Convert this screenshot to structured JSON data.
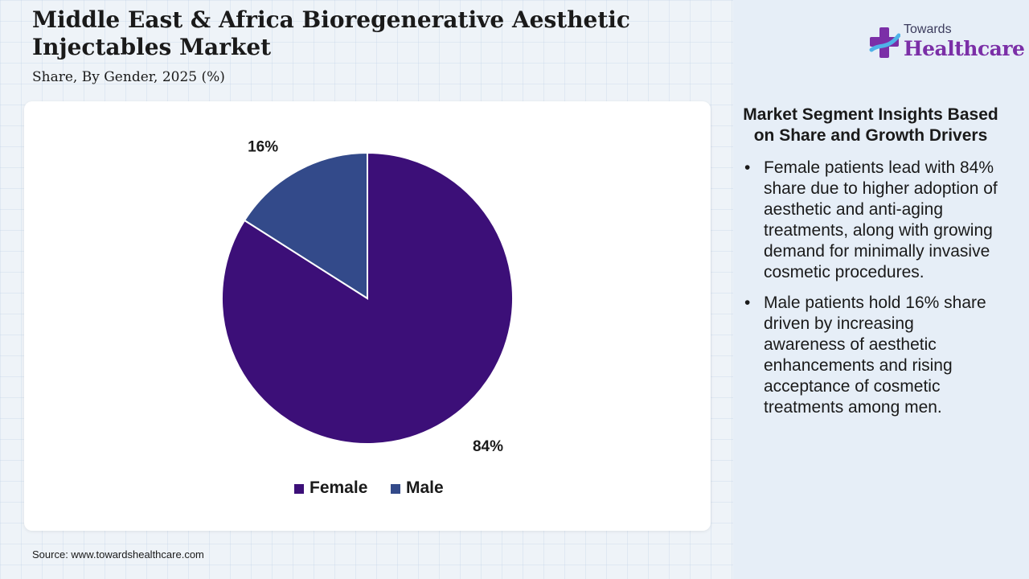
{
  "title": "Middle East & Africa Bioregenerative Aesthetic Injectables Market",
  "subtitle": "Share, By Gender, 2025 (%)",
  "logo": {
    "top": "Towards",
    "main": "Healthcare"
  },
  "source": "Source: www.towardshealthcare.com",
  "chart_data": {
    "type": "pie",
    "title": "Middle East & Africa Bioregenerative Aesthetic Injectables Market",
    "subtitle": "Share, By Gender, 2025 (%)",
    "categories": [
      "Female",
      "Male"
    ],
    "values": [
      84,
      16
    ],
    "labels": [
      "84%",
      "16%"
    ],
    "colors": [
      "#3c0f78",
      "#334a8a"
    ],
    "legend": "bottom"
  },
  "insights": {
    "title": "Market Segment Insights Based on Share and Growth Drivers",
    "bullets": [
      "Female patients lead with 84% share due to higher adoption of aesthetic and anti-aging treatments, along with growing demand for minimally invasive cosmetic procedures.",
      "Male patients hold 16% share driven by increasing awareness of aesthetic enhancements and rising acceptance of cosmetic treatments among men."
    ]
  }
}
